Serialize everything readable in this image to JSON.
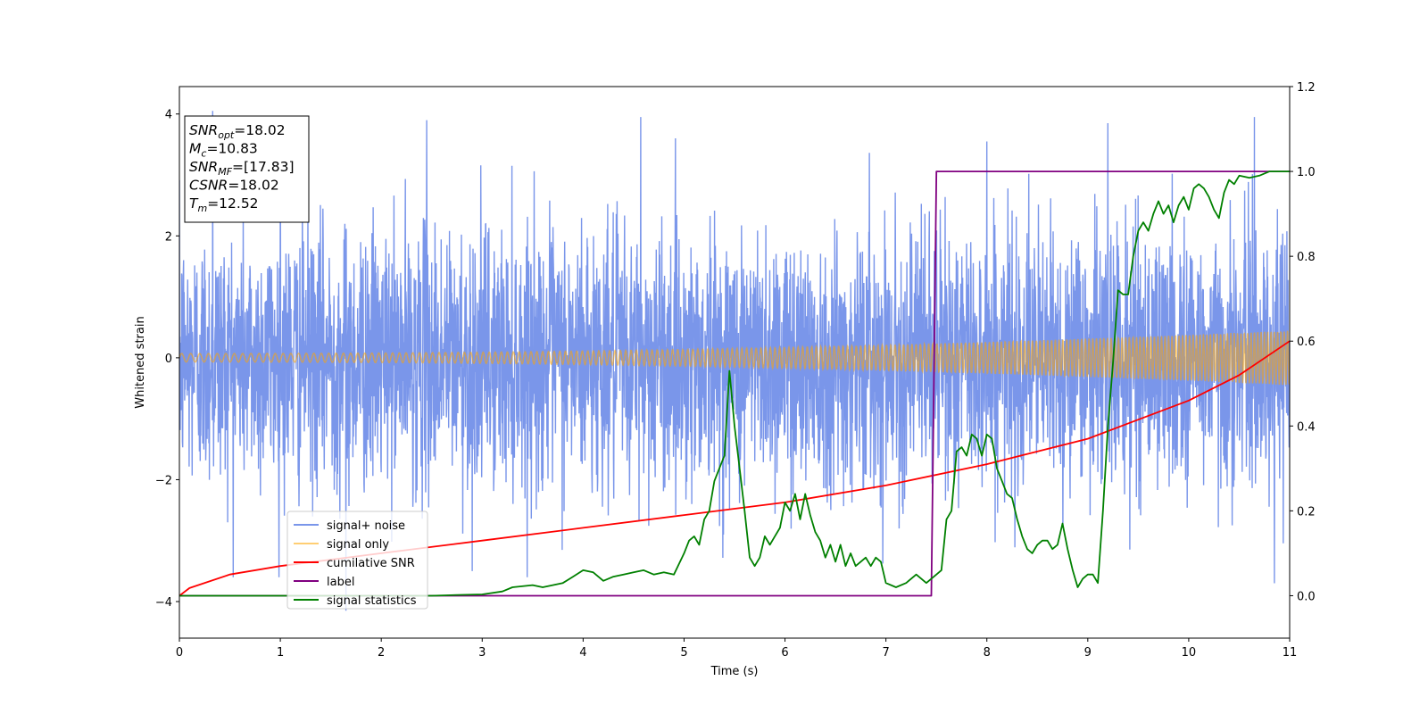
{
  "chart_data": {
    "type": "line",
    "xlabel": "Time (s)",
    "ylabel": "Whitened strain",
    "xlim": [
      0,
      11
    ],
    "ylim": [
      -4.6,
      4.45
    ],
    "y2lim": [
      -0.1,
      1.2
    ],
    "xticks": [
      "0",
      "1",
      "2",
      "3",
      "4",
      "5",
      "6",
      "7",
      "8",
      "9",
      "10",
      "11"
    ],
    "yticks": [
      "−4",
      "−2",
      "0",
      "2",
      "4"
    ],
    "y2ticks": [
      "0.0",
      "0.2",
      "0.4",
      "0.6",
      "0.8",
      "1.0",
      "1.2"
    ],
    "grid": false,
    "legend_position": "lower-left",
    "info_box": [
      {
        "name": "SNR",
        "sub": "opt",
        "value": "=18.02"
      },
      {
        "name": "M",
        "sub": "c",
        "value": "=10.83"
      },
      {
        "name": "SNR",
        "sub": "MF",
        "value": "=[17.83]"
      },
      {
        "name": "CSNR",
        "sub": "",
        "value": "=18.02"
      },
      {
        "name": "T",
        "sub": "m",
        "value": "=12.52"
      }
    ],
    "series": [
      {
        "name": "signal+ noise",
        "color": "#4169e1",
        "axis": "left",
        "description_values": "whitened strain noise, std approx 1.15, range approx -4.1 to 4.05",
        "spikes": [
          [
            0.33,
            4.05
          ],
          [
            1.65,
            -4.15
          ],
          [
            2.45,
            3.9
          ],
          [
            4.57,
            3.95
          ],
          [
            9.2,
            3.85
          ],
          [
            10.65,
            3.95
          ],
          [
            10.85,
            -3.7
          ],
          [
            1.0,
            3.7
          ],
          [
            8.0,
            3.55
          ],
          [
            2.9,
            -3.5
          ]
        ]
      },
      {
        "name": "signal only",
        "color": "#ffa500",
        "axis": "left",
        "amplitude_start": 0.07,
        "amplitude_end": 0.45
      },
      {
        "name": "cumilative SNR",
        "color": "#ff0000",
        "axis": "right",
        "x": [
          0,
          0.1,
          0.5,
          1,
          2,
          3,
          4,
          5,
          6,
          7,
          8,
          9,
          10,
          10.5,
          11
        ],
        "values": [
          0.0,
          0.018,
          0.05,
          0.07,
          0.1,
          0.13,
          0.16,
          0.19,
          0.22,
          0.26,
          0.31,
          0.37,
          0.46,
          0.52,
          0.6
        ]
      },
      {
        "name": "label",
        "color": "#800080",
        "axis": "right",
        "x": [
          0,
          7.45,
          7.5,
          11
        ],
        "values": [
          0,
          0,
          1,
          1
        ]
      },
      {
        "name": "signal statistics",
        "color": "#008000",
        "axis": "right",
        "x": [
          0,
          1,
          2,
          2.5,
          2.8,
          3.0,
          3.2,
          3.3,
          3.5,
          3.6,
          3.8,
          3.9,
          4.0,
          4.1,
          4.2,
          4.3,
          4.4,
          4.5,
          4.6,
          4.7,
          4.8,
          4.9,
          5.0,
          5.05,
          5.1,
          5.15,
          5.2,
          5.25,
          5.3,
          5.35,
          5.4,
          5.45,
          5.5,
          5.55,
          5.6,
          5.65,
          5.7,
          5.75,
          5.8,
          5.85,
          5.9,
          5.95,
          6.0,
          6.05,
          6.1,
          6.15,
          6.2,
          6.25,
          6.3,
          6.35,
          6.4,
          6.45,
          6.5,
          6.55,
          6.6,
          6.65,
          6.7,
          6.75,
          6.8,
          6.85,
          6.9,
          6.95,
          7.0,
          7.1,
          7.2,
          7.3,
          7.4,
          7.5,
          7.55,
          7.6,
          7.65,
          7.7,
          7.75,
          7.8,
          7.85,
          7.9,
          7.95,
          8.0,
          8.05,
          8.1,
          8.15,
          8.2,
          8.25,
          8.3,
          8.35,
          8.4,
          8.45,
          8.5,
          8.55,
          8.6,
          8.65,
          8.7,
          8.75,
          8.8,
          8.85,
          8.9,
          8.95,
          9.0,
          9.05,
          9.1,
          9.15,
          9.2,
          9.25,
          9.3,
          9.35,
          9.4,
          9.45,
          9.5,
          9.55,
          9.6,
          9.65,
          9.7,
          9.75,
          9.8,
          9.85,
          9.9,
          9.95,
          10.0,
          10.05,
          10.1,
          10.15,
          10.2,
          10.25,
          10.3,
          10.35,
          10.4,
          10.45,
          10.5,
          10.6,
          10.7,
          10.8,
          10.9,
          11.0
        ],
        "values": [
          0.0,
          0.0,
          0.0,
          0.0,
          0.002,
          0.003,
          0.01,
          0.02,
          0.025,
          0.02,
          0.03,
          0.045,
          0.06,
          0.055,
          0.035,
          0.045,
          0.05,
          0.055,
          0.06,
          0.05,
          0.055,
          0.05,
          0.1,
          0.13,
          0.14,
          0.12,
          0.18,
          0.2,
          0.27,
          0.3,
          0.33,
          0.53,
          0.4,
          0.3,
          0.2,
          0.09,
          0.07,
          0.09,
          0.14,
          0.12,
          0.14,
          0.16,
          0.22,
          0.2,
          0.24,
          0.18,
          0.24,
          0.19,
          0.15,
          0.13,
          0.09,
          0.12,
          0.08,
          0.12,
          0.07,
          0.1,
          0.07,
          0.08,
          0.09,
          0.07,
          0.09,
          0.08,
          0.03,
          0.02,
          0.03,
          0.05,
          0.03,
          0.05,
          0.06,
          0.18,
          0.2,
          0.34,
          0.35,
          0.33,
          0.38,
          0.37,
          0.33,
          0.38,
          0.37,
          0.3,
          0.27,
          0.24,
          0.23,
          0.18,
          0.14,
          0.11,
          0.1,
          0.12,
          0.13,
          0.13,
          0.11,
          0.12,
          0.17,
          0.11,
          0.06,
          0.02,
          0.04,
          0.05,
          0.05,
          0.03,
          0.2,
          0.4,
          0.55,
          0.72,
          0.71,
          0.71,
          0.8,
          0.86,
          0.88,
          0.86,
          0.9,
          0.93,
          0.9,
          0.92,
          0.88,
          0.92,
          0.94,
          0.91,
          0.96,
          0.97,
          0.96,
          0.94,
          0.91,
          0.89,
          0.95,
          0.98,
          0.97,
          0.99,
          0.985,
          0.99,
          1.0,
          1.0,
          1.0
        ]
      }
    ]
  }
}
